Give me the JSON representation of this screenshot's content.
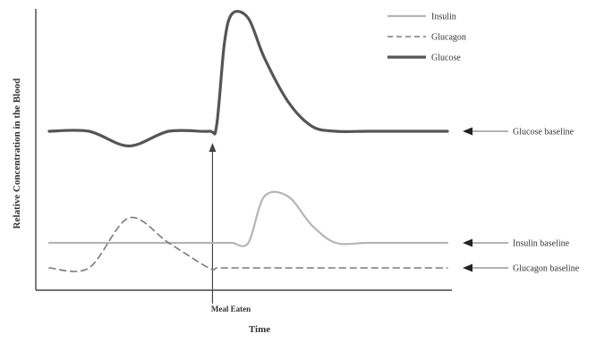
{
  "chart_data": {
    "type": "line",
    "title": "",
    "xlabel": "Time",
    "ylabel": "Relative Concentration in the Blood",
    "annotation": "Meal Eaten",
    "x": [
      0,
      5,
      10,
      15,
      20,
      21,
      22,
      23,
      25,
      27,
      30,
      33,
      36,
      40,
      45,
      50
    ],
    "series": [
      {
        "name": "Glucose",
        "style": "solid-thick",
        "color": "#555555",
        "values": [
          0,
          0,
          -3,
          0,
          0,
          1,
          18,
          24,
          23,
          15,
          6,
          1,
          0,
          0,
          0,
          0
        ]
      },
      {
        "name": "Insulin",
        "style": "solid-light",
        "color": "#b5b5b5",
        "values": [
          0,
          0,
          0,
          0,
          0,
          0,
          0,
          0,
          0,
          8,
          8,
          3,
          0,
          0,
          0,
          0
        ]
      },
      {
        "name": "Glucagon",
        "style": "dashed",
        "color": "#7a7a7a",
        "values": [
          0,
          0,
          8,
          4,
          0,
          0,
          0,
          0,
          0,
          0,
          0,
          0,
          0,
          0,
          0,
          0
        ]
      }
    ],
    "baselines": [
      {
        "label": "Glucose baseline"
      },
      {
        "label": "Insulin baseline"
      },
      {
        "label": "Glucagon baseline"
      }
    ],
    "grid": false,
    "legend": "top-right"
  }
}
